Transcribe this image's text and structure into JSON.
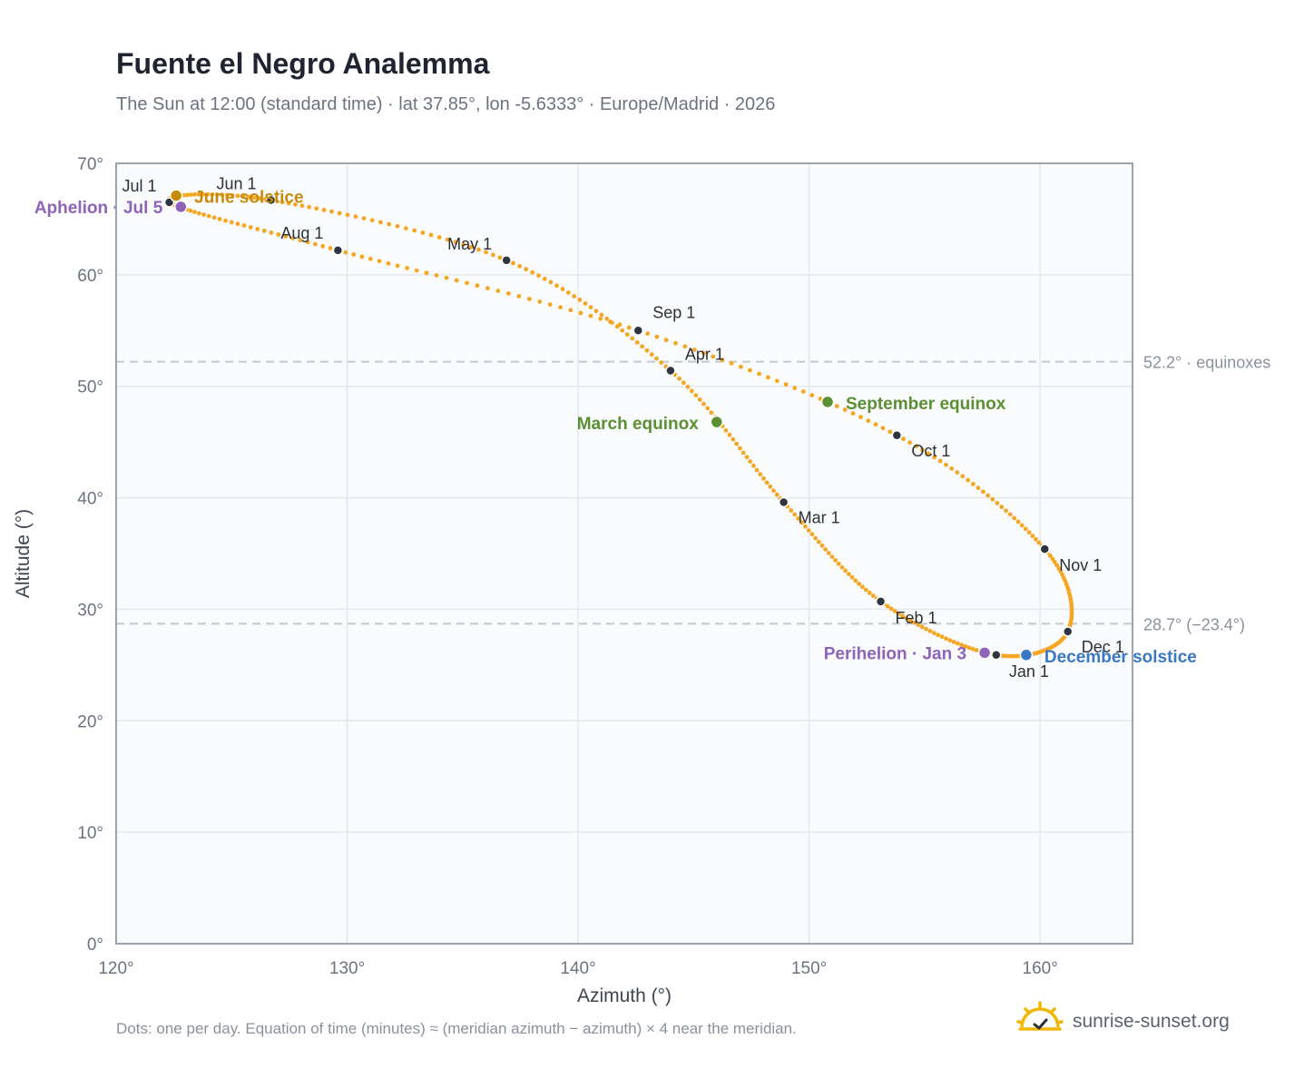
{
  "header": {
    "title": "Fuente el Negro Analemma",
    "subtitle": "The Sun at 12:00 (standard time) · lat 37.85°, lon -5.6333° · Europe/Madrid · 2026"
  },
  "footer": {
    "note": "Dots: one per day. Equation of time (minutes) ≈ (meridian azimuth − azimuth) × 4 near the meridian.",
    "brand": "sunrise-sunset.org"
  },
  "colors": {
    "curve": "#f5a623",
    "month_dot": "#2f3540",
    "solstice_june": "#c98b0b",
    "solstice_december": "#3a78c2",
    "equinox": "#5a8f32",
    "apsis": "#8e63b8",
    "plot_bg": "#f9fbfd",
    "grid": "#e4e8ee",
    "frame": "#9aa3b0",
    "reference_line": "#c3c8cf"
  },
  "chart_data": {
    "type": "scatter",
    "title": "Fuente el Negro Analemma",
    "xlabel": "Azimuth (°)",
    "ylabel": "Altitude (°)",
    "xlim": [
      120,
      164
    ],
    "ylim": [
      0,
      70
    ],
    "x_ticks": [
      "120°",
      "130°",
      "140°",
      "150°",
      "160°"
    ],
    "y_ticks": [
      "0°",
      "10°",
      "20°",
      "30°",
      "40°",
      "50°",
      "60°",
      "70°"
    ],
    "grid": true,
    "reference_lines": [
      {
        "altitude": 52.2,
        "label": "52.2° · equinoxes"
      },
      {
        "altitude": 28.7,
        "label": "28.7° (−23.4°)"
      }
    ],
    "monthly_points": [
      {
        "label": "Jan 1",
        "azimuth": 158.1,
        "altitude": 25.9
      },
      {
        "label": "Feb 1",
        "azimuth": 153.1,
        "altitude": 30.7
      },
      {
        "label": "Mar 1",
        "azimuth": 148.9,
        "altitude": 39.6
      },
      {
        "label": "Apr 1",
        "azimuth": 144.0,
        "altitude": 51.4
      },
      {
        "label": "May 1",
        "azimuth": 136.9,
        "altitude": 61.3
      },
      {
        "label": "Jun 1",
        "azimuth": 126.7,
        "altitude": 66.7
      },
      {
        "label": "Jul 1",
        "azimuth": 122.3,
        "altitude": 66.5
      },
      {
        "label": "Aug 1",
        "azimuth": 129.6,
        "altitude": 62.2
      },
      {
        "label": "Sep 1",
        "azimuth": 142.6,
        "altitude": 55.0
      },
      {
        "label": "Oct 1",
        "azimuth": 153.8,
        "altitude": 45.6
      },
      {
        "label": "Nov 1",
        "azimuth": 160.2,
        "altitude": 35.4
      },
      {
        "label": "Dec 1",
        "azimuth": 161.2,
        "altitude": 28.0
      }
    ],
    "events": [
      {
        "label": "June solstice",
        "azimuth": 122.6,
        "altitude": 67.1,
        "color_key": "solstice_june"
      },
      {
        "label": "Aphelion · Jul 5",
        "azimuth": 122.8,
        "altitude": 66.1,
        "color_key": "apsis"
      },
      {
        "label": "March equinox",
        "azimuth": 146.0,
        "altitude": 46.8,
        "color_key": "equinox"
      },
      {
        "label": "September equinox",
        "azimuth": 150.8,
        "altitude": 48.6,
        "color_key": "equinox"
      },
      {
        "label": "Perihelion · Jan 3",
        "azimuth": 157.6,
        "altitude": 26.1,
        "color_key": "apsis"
      },
      {
        "label": "December solstice",
        "azimuth": 159.4,
        "altitude": 25.9,
        "color_key": "solstice_december"
      }
    ]
  }
}
